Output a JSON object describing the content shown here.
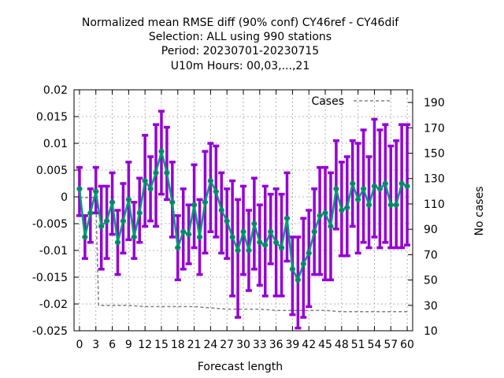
{
  "chart_data": {
    "type": "line",
    "title_lines": [
      "Normalized mean RMSE diff (90% conf) CY46ref - CY46dif",
      "Selection: ALL using   990 stations",
      "Period: 20230701-20230715",
      "U10m   Hours:  00,03,...,21"
    ],
    "xlabel": "Forecast length",
    "ylabel_right": "No cases",
    "xlim": [
      -1,
      61
    ],
    "ylim_left": [
      -0.025,
      0.02
    ],
    "ylim_right": [
      10,
      200
    ],
    "x_ticks": [
      0,
      3,
      6,
      9,
      12,
      15,
      18,
      21,
      24,
      27,
      30,
      33,
      36,
      39,
      42,
      45,
      48,
      51,
      54,
      57,
      60
    ],
    "y_ticks_left": [
      -0.025,
      -0.02,
      -0.015,
      -0.01,
      -0.005,
      0,
      0.005,
      0.01,
      0.015,
      0.02
    ],
    "y_tick_labels_left": [
      "-0.025",
      "-0.02",
      "-0.015",
      "-0.01",
      "-0.005",
      "0",
      "0.005",
      "0.01",
      "0.015",
      "0.02"
    ],
    "y_ticks_right": [
      10,
      30,
      50,
      70,
      90,
      110,
      130,
      150,
      170,
      190
    ],
    "grid": true,
    "legend": {
      "position": "top-right",
      "entries": [
        "Cases"
      ]
    },
    "colors": {
      "errorbar": "#9400d3",
      "line": "#009e73",
      "cases": "#808080"
    },
    "series": [
      {
        "x": [
          0,
          1,
          2,
          3,
          4,
          5,
          6,
          7,
          8,
          9,
          10,
          11,
          12,
          13,
          14,
          15,
          16,
          17,
          18,
          19,
          20,
          21,
          22,
          23,
          24,
          25,
          26,
          27,
          28,
          29,
          30,
          31,
          32,
          33,
          34,
          35,
          36,
          37,
          38,
          39,
          40,
          41,
          42,
          43,
          44,
          45,
          46,
          47,
          48,
          49,
          50,
          51,
          52,
          53,
          54,
          55,
          56,
          57,
          58,
          59,
          60
        ],
        "y": [
          0.0015,
          -0.0075,
          -0.003,
          0.001,
          -0.0055,
          -0.0045,
          -0.001,
          -0.0085,
          -0.0045,
          -0.0005,
          -0.0075,
          -0.003,
          0.003,
          0.0015,
          0.0045,
          0.0085,
          0.0045,
          -0.001,
          -0.0095,
          -0.0065,
          -0.007,
          -0.0015,
          -0.0075,
          -0.001,
          0.003,
          0.001,
          -0.0025,
          -0.0045,
          -0.0075,
          -0.01,
          -0.0065,
          -0.01,
          -0.005,
          -0.0085,
          -0.009,
          -0.0065,
          -0.0085,
          -0.0095,
          -0.004,
          -0.0135,
          -0.0155,
          -0.0125,
          -0.0105,
          -0.0065,
          -0.0035,
          -0.003,
          -0.0055,
          0.0015,
          -0.0025,
          -0.002,
          0.0025,
          -0.0005,
          0.0015,
          -0.0015,
          0.002,
          0.0015,
          0.0025,
          -0.0015,
          -0.0015,
          0.0025,
          0.002
        ],
        "lower": [
          -0.0035,
          -0.0115,
          -0.0085,
          -0.003,
          -0.0135,
          -0.0115,
          -0.007,
          -0.0145,
          -0.0105,
          -0.008,
          -0.0115,
          -0.0085,
          -0.0055,
          -0.0045,
          -0.0055,
          0.0005,
          -0.0005,
          -0.0075,
          -0.0155,
          -0.0135,
          -0.0125,
          -0.0095,
          -0.0145,
          -0.0105,
          -0.0065,
          -0.0075,
          -0.0105,
          -0.0115,
          -0.0185,
          -0.0225,
          -0.0145,
          -0.0175,
          -0.0135,
          -0.0165,
          -0.0185,
          -0.0125,
          -0.0185,
          -0.0185,
          -0.012,
          -0.022,
          -0.0245,
          -0.0225,
          -0.0205,
          -0.0145,
          -0.0145,
          -0.0155,
          -0.0155,
          -0.006,
          -0.011,
          -0.011,
          -0.0055,
          -0.0105,
          -0.0085,
          -0.0095,
          -0.0075,
          -0.0095,
          -0.0085,
          -0.0095,
          -0.0095,
          -0.0095,
          -0.009
        ],
        "upper": [
          0.0055,
          -0.0035,
          0.0015,
          0.0055,
          0.002,
          0.002,
          0.0045,
          -0.0025,
          0.0025,
          0.0065,
          -0.001,
          0.0035,
          0.0115,
          0.0075,
          0.0135,
          0.016,
          0.013,
          0.0065,
          -0.0035,
          0.0015,
          -0.0015,
          0.006,
          -0.0005,
          0.0085,
          0.01,
          0.0095,
          0.0045,
          0.0015,
          0.003,
          -0.0005,
          0.002,
          -0.0025,
          0.0035,
          -0.0015,
          0.002,
          0.0005,
          0.0015,
          0.0005,
          0.0045,
          -0.0075,
          -0.0075,
          -0.004,
          -0.0025,
          0.0015,
          0.0055,
          0.0055,
          0.0045,
          0.0105,
          0.0065,
          0.0075,
          0.0105,
          0.01,
          0.0125,
          0.0075,
          0.0145,
          0.0125,
          0.0135,
          0.0095,
          0.0105,
          0.0135,
          0.0135
        ]
      }
    ],
    "cases": {
      "x": [
        0,
        3,
        3.5,
        6,
        9,
        12,
        15,
        18,
        21,
        24,
        27,
        30,
        33,
        36,
        39,
        42,
        45,
        48,
        51,
        54,
        57,
        60
      ],
      "y": [
        115,
        115,
        30,
        30,
        30,
        29,
        29,
        29,
        29,
        28,
        27,
        27,
        27,
        26,
        26,
        26,
        26,
        25,
        25,
        25,
        25,
        25
      ]
    }
  }
}
